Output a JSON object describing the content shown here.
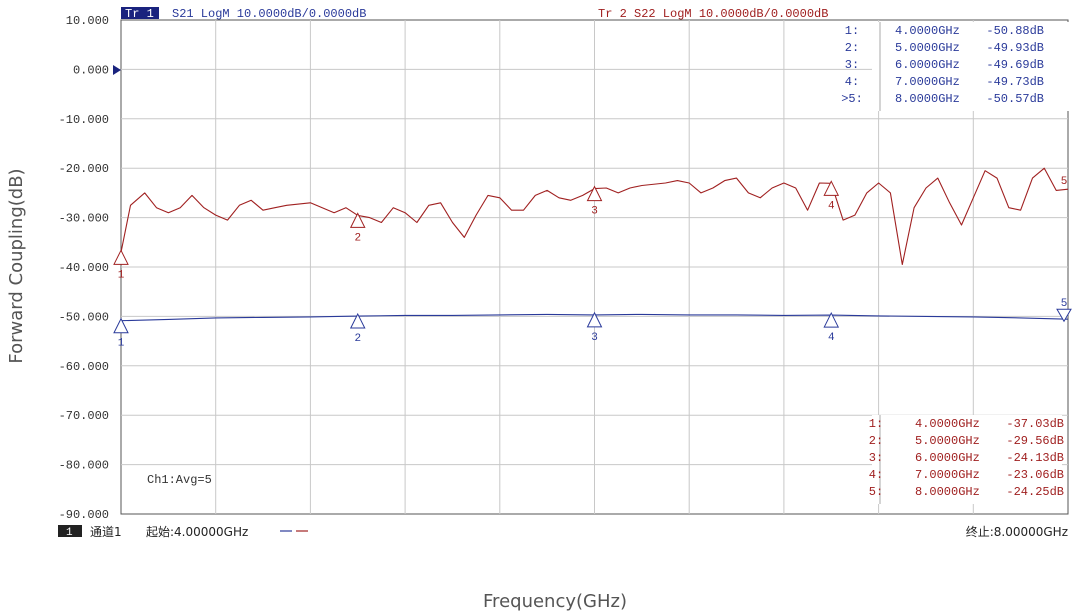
{
  "page": {
    "ylabel": "Forward Coupling(dB)",
    "xlabel": "Frequency(GHz)"
  },
  "instrument": {
    "trace1_tag": "Tr 1",
    "trace1_header": "S21 LogM 10.0000dB/0.0000dB",
    "trace2_header": "Tr 2  S22 LogM 10.0000dB/0.0000dB",
    "avg_label": "Ch1:Avg=5",
    "channel_box": "1",
    "channel_name": "通道1",
    "start_label": "起始:4.00000GHz",
    "stop_label": "终止:8.00000GHz"
  },
  "colors": {
    "trace_blue": "#2a3a9a",
    "trace_red": "#a02020",
    "grid": "#c8c8c8",
    "axis": "#555555",
    "tag_bg": "#1a237e"
  },
  "chart_data": {
    "type": "line",
    "ylim": [
      -90,
      10
    ],
    "xlim": [
      4,
      8
    ],
    "yticks": [
      "10.000",
      "0.000",
      "-10.000",
      "-20.000",
      "-30.000",
      "-40.000",
      "-50.000",
      "-60.000",
      "-70.000",
      "-80.000",
      "-90.000"
    ],
    "grid": true,
    "series": [
      {
        "name": "S21",
        "color": "#2a3a9a",
        "x": [
          4.0,
          4.2,
          4.4,
          4.6,
          4.8,
          5.0,
          5.2,
          5.4,
          5.6,
          5.8,
          6.0,
          6.2,
          6.4,
          6.6,
          6.8,
          7.0,
          7.2,
          7.4,
          7.6,
          7.8,
          8.0
        ],
        "values": [
          -50.88,
          -50.6,
          -50.3,
          -50.2,
          -50.1,
          -49.93,
          -49.8,
          -49.8,
          -49.7,
          -49.6,
          -49.69,
          -49.6,
          -49.7,
          -49.7,
          -49.8,
          -49.73,
          -49.9,
          -50.0,
          -50.1,
          -50.3,
          -50.57
        ]
      },
      {
        "name": "S22",
        "color": "#a02020",
        "x": [
          4.0,
          4.04,
          4.1,
          4.15,
          4.2,
          4.25,
          4.3,
          4.35,
          4.4,
          4.45,
          4.5,
          4.55,
          4.6,
          4.65,
          4.7,
          4.8,
          4.9,
          4.95,
          5.0,
          5.05,
          5.1,
          5.15,
          5.2,
          5.25,
          5.3,
          5.35,
          5.4,
          5.45,
          5.5,
          5.55,
          5.6,
          5.65,
          5.7,
          5.75,
          5.8,
          5.85,
          5.9,
          5.95,
          6.0,
          6.05,
          6.1,
          6.15,
          6.2,
          6.3,
          6.35,
          6.4,
          6.45,
          6.5,
          6.55,
          6.6,
          6.65,
          6.7,
          6.75,
          6.8,
          6.85,
          6.9,
          6.95,
          7.0,
          7.05,
          7.1,
          7.15,
          7.2,
          7.25,
          7.3,
          7.35,
          7.4,
          7.45,
          7.5,
          7.55,
          7.6,
          7.65,
          7.7,
          7.75,
          7.8,
          7.85,
          7.9,
          7.95,
          8.0
        ],
        "values": [
          -37.03,
          -27.5,
          -25,
          -28,
          -29,
          -28,
          -25.5,
          -28,
          -29.5,
          -30.5,
          -27.5,
          -26.5,
          -28.5,
          -28,
          -27.5,
          -27,
          -29,
          -28,
          -29.56,
          -30,
          -31,
          -28,
          -29,
          -31,
          -27.5,
          -27,
          -31,
          -34,
          -29.5,
          -25.5,
          -26,
          -28.5,
          -28.5,
          -25.5,
          -24.5,
          -26,
          -26.5,
          -25.5,
          -24.13,
          -24,
          -25,
          -24,
          -23.5,
          -23,
          -22.5,
          -23,
          -25,
          -24,
          -22.5,
          -22,
          -25,
          -26,
          -24,
          -23,
          -24,
          -28.5,
          -23,
          -23.06,
          -30.5,
          -29.5,
          -25,
          -23,
          -25,
          -39.5,
          -28,
          -24,
          -22,
          -27,
          -31.5,
          -26,
          -20.5,
          -22,
          -28,
          -28.5,
          -22,
          -20,
          -24.5,
          -24.25
        ]
      }
    ],
    "markers": [
      {
        "series": "S21",
        "id": "1",
        "freq": "4.0000GHz",
        "value_label": "-50.88dB",
        "x": 4.0,
        "y": -50.88
      },
      {
        "series": "S21",
        "id": "2",
        "freq": "5.0000GHz",
        "value_label": "-49.93dB",
        "x": 5.0,
        "y": -49.93
      },
      {
        "series": "S21",
        "id": "3",
        "freq": "6.0000GHz",
        "value_label": "-49.69dB",
        "x": 6.0,
        "y": -49.69
      },
      {
        "series": "S21",
        "id": "4",
        "freq": "7.0000GHz",
        "value_label": "-49.73dB",
        "x": 7.0,
        "y": -49.73
      },
      {
        "series": "S21",
        "id": "5",
        "freq": "8.0000GHz",
        "value_label": "-50.57dB",
        "x": 8.0,
        "y": -50.57
      },
      {
        "series": "S22",
        "id": "1",
        "freq": "4.0000GHz",
        "value_label": "-37.03dB",
        "x": 4.0,
        "y": -37.03
      },
      {
        "series": "S22",
        "id": "2",
        "freq": "5.0000GHz",
        "value_label": "-29.56dB",
        "x": 5.0,
        "y": -29.56
      },
      {
        "series": "S22",
        "id": "3",
        "freq": "6.0000GHz",
        "value_label": "-24.13dB",
        "x": 6.0,
        "y": -24.13
      },
      {
        "series": "S22",
        "id": "4",
        "freq": "7.0000GHz",
        "value_label": "-23.06dB",
        "x": 7.0,
        "y": -23.06
      },
      {
        "series": "S22",
        "id": "5",
        "freq": "8.0000GHz",
        "value_label": "-24.25dB",
        "x": 8.0,
        "y": -24.25
      }
    ],
    "marker_tables": [
      {
        "series": "S21",
        "rows": [
          {
            "id": "1:",
            "freq": "4.0000GHz",
            "val": "-50.88dB"
          },
          {
            "id": "2:",
            "freq": "5.0000GHz",
            "val": "-49.93dB"
          },
          {
            "id": "3:",
            "freq": "6.0000GHz",
            "val": "-49.69dB"
          },
          {
            "id": "4:",
            "freq": "7.0000GHz",
            "val": "-49.73dB"
          },
          {
            "id": ">5:",
            "freq": "8.0000GHz",
            "val": "-50.57dB"
          }
        ]
      },
      {
        "series": "S22",
        "rows": [
          {
            "id": "1:",
            "freq": "4.0000GHz",
            "val": "-37.03dB"
          },
          {
            "id": "2:",
            "freq": "5.0000GHz",
            "val": "-29.56dB"
          },
          {
            "id": "3:",
            "freq": "6.0000GHz",
            "val": "-24.13dB"
          },
          {
            "id": "4:",
            "freq": "7.0000GHz",
            "val": "-23.06dB"
          },
          {
            "id": "5:",
            "freq": "8.0000GHz",
            "val": "-24.25dB"
          }
        ]
      }
    ]
  }
}
